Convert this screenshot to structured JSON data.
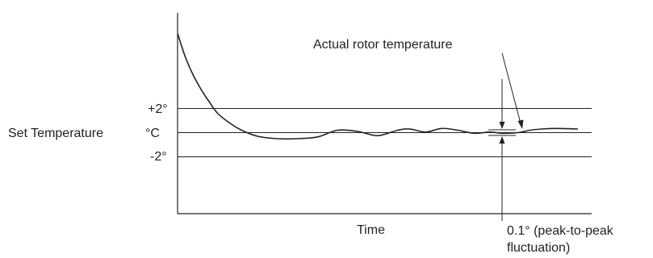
{
  "chart_data": {
    "type": "line",
    "title": "",
    "xlabel": "Time",
    "ylabel": "Set Temperature",
    "ylabel_unit": "°C",
    "y_tick_labels": [
      "+2°",
      "-2°"
    ],
    "reference_lines": [
      {
        "value": 2,
        "label": "+2°"
      },
      {
        "value": 0,
        "label": "°C"
      },
      {
        "value": -2,
        "label": "-2°"
      }
    ],
    "ylim": [
      -6.7,
      8.3
    ],
    "xlim": [
      0,
      100
    ],
    "series": [
      {
        "x": [
          0,
          2,
          4,
          6,
          8,
          10,
          13,
          16,
          20,
          25,
          30,
          35,
          40,
          45,
          50,
          55,
          58,
          62,
          66,
          70,
          74,
          78,
          81,
          85,
          88,
          91,
          95,
          100
        ],
        "y": [
          8.2,
          6.2,
          4.7,
          3.5,
          2.5,
          1.6,
          0.8,
          0.2,
          -0.3,
          -0.5,
          -0.5,
          -0.35,
          0.2,
          0.1,
          -0.25,
          0.2,
          0.3,
          0.05,
          0.35,
          0.2,
          -0.05,
          0.05,
          -0.05,
          0.0,
          0.2,
          0.3,
          0.35,
          0.3
        ]
      }
    ],
    "annotations": [
      {
        "text": "Actual rotor temperature"
      },
      {
        "text": "0.1° (peak-to-peak"
      },
      {
        "text": "fluctuation)"
      }
    ],
    "grid": false
  }
}
